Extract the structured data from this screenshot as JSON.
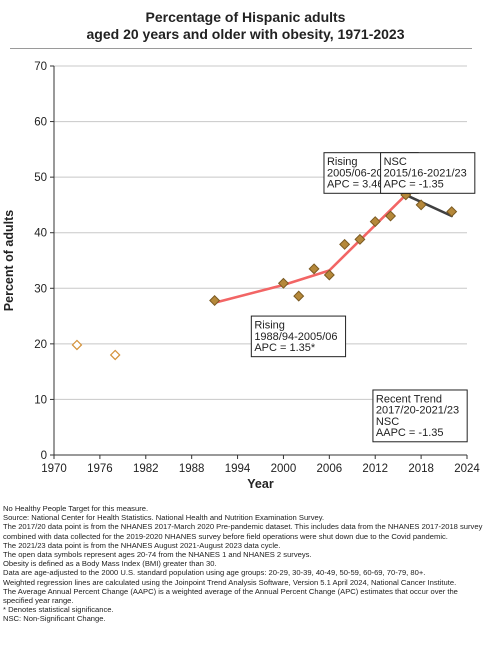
{
  "title_lines": [
    "Percentage of Hispanic adults",
    "aged 20 years and older with obesity, 1971-2023"
  ],
  "colors": {
    "rising_line": "#f26565",
    "nsc_line": "#404040",
    "point_fill": "#b5883a",
    "point_stroke": "#7a5a22",
    "open_point_stroke": "#d4923a",
    "grid": "#c8c8c8"
  },
  "chart_data": {
    "type": "scatter",
    "title": "Percentage of Hispanic adults aged 20 years and older with obesity, 1971-2023",
    "xlabel": "Year",
    "ylabel": "Percent of adults",
    "xlim": [
      1970,
      2024
    ],
    "ylim": [
      0,
      70
    ],
    "x_ticks": [
      "1970",
      "1976",
      "1982",
      "1988",
      "1994",
      "2000",
      "2006",
      "2012",
      "2018",
      "2024"
    ],
    "y_ticks": [
      "0",
      "10",
      "20",
      "30",
      "40",
      "50",
      "60",
      "70"
    ],
    "grid": "horizontal",
    "open_points": [
      {
        "x": 1973,
        "y": 19.8
      },
      {
        "x": 1978,
        "y": 18.0
      }
    ],
    "points": [
      {
        "x": 1991,
        "y": 27.8
      },
      {
        "x": 2000,
        "y": 30.9
      },
      {
        "x": 2002,
        "y": 28.6
      },
      {
        "x": 2004,
        "y": 33.5
      },
      {
        "x": 2006,
        "y": 32.4
      },
      {
        "x": 2008,
        "y": 37.9
      },
      {
        "x": 2010,
        "y": 38.8
      },
      {
        "x": 2012,
        "y": 42.0
      },
      {
        "x": 2014,
        "y": 43.0
      },
      {
        "x": 2016,
        "y": 46.8
      },
      {
        "x": 2018,
        "y": 45.0
      },
      {
        "x": 2022,
        "y": 43.8
      }
    ],
    "trend_segments": [
      {
        "style": "rising",
        "points": [
          {
            "x": 1991,
            "y": 27.4
          },
          {
            "x": 2000,
            "y": 30.6
          },
          {
            "x": 2006,
            "y": 33.2
          }
        ]
      },
      {
        "style": "rising",
        "points": [
          {
            "x": 2006,
            "y": 33.2
          },
          {
            "x": 2016,
            "y": 46.8
          }
        ]
      },
      {
        "style": "nsc",
        "points": [
          {
            "x": 2016,
            "y": 46.8
          },
          {
            "x": 2022,
            "y": 43.0
          }
        ]
      }
    ],
    "annotations": [
      {
        "lines": [
          "Rising",
          "2005/06-2015/16",
          "APC =  3.46*"
        ],
        "x": 2005.3,
        "y": 54.4
      },
      {
        "lines": [
          "NSC",
          "2015/16-2021/23",
          "APC = -1.35"
        ],
        "x": 2012.7,
        "y": 54.4
      },
      {
        "lines": [
          "Rising",
          "1988/94-2005/06",
          "APC =  1.35*"
        ],
        "x": 1995.8,
        "y": 25.0
      },
      {
        "lines": [
          "Recent Trend",
          "2017/20-2021/23",
          "NSC",
          "AAPC = -1.35"
        ],
        "x": 2011.7,
        "y": 11.7
      }
    ]
  },
  "notes": [
    "No Healthy People Target for this measure.",
    "Source: National Center for Health Statistics. National Health and Nutrition Examination Survey.",
    "The 2017/20 data point is from the NHANES 2017-March 2020 Pre-pandemic dataset. This includes data from the NHANES 2017-2018 survey combined with data collected for the 2019-2020 NHANES survey before field operations were shut down due to the Covid pandemic.",
    "The 2021/23 data point is from the NHANES August 2021-August 2023 data cycle.",
    "The open data symbols represent ages 20-74 from the NHANES 1 and NHANES 2 surveys.",
    "Obesity is defined as a Body Mass Index (BMI) greater than 30.",
    "Data are age-adjusted to the 2000 U.S. standard population using age groups: 20-29, 30-39, 40-49, 50-59, 60-69, 70-79, 80+.",
    "Weighted regression lines are calculated using the Joinpoint Trend Analysis Software, Version 5.1 April 2024, National Cancer Institute.",
    "The Average Annual Percent Change (AAPC) is a weighted average of the Annual Percent Change (APC) estimates that occur over the specified year range.",
    "* Denotes statistical significance.",
    "NSC: Non-Significant Change."
  ]
}
